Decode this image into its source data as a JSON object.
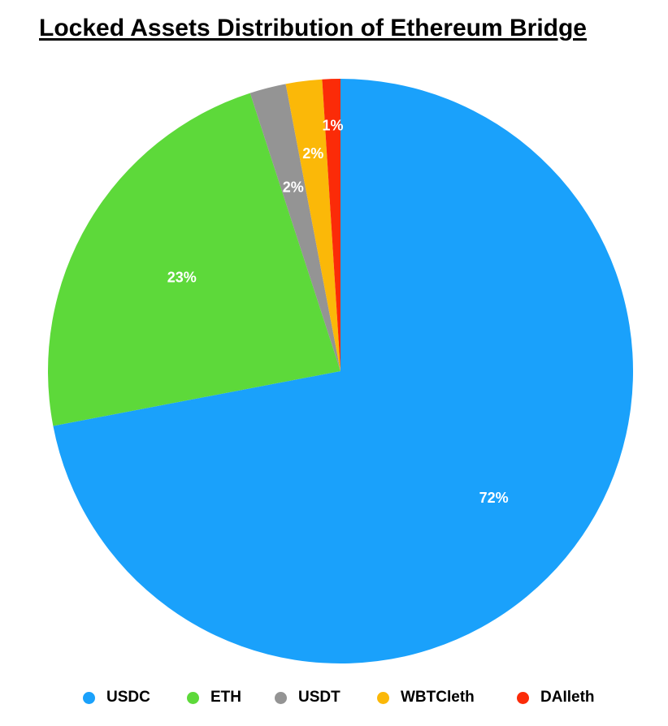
{
  "chart_data": {
    "type": "pie",
    "title": "Locked Assets Distribution of Ethereum Bridge",
    "categories": [
      "USDC",
      "ETH",
      "USDT",
      "WBTCleth",
      "DAIleth"
    ],
    "values": [
      72,
      23,
      2,
      2,
      1
    ],
    "value_labels": [
      "72%",
      "23%",
      "2%",
      "2%",
      "1%"
    ],
    "colors": [
      "#1aa1fb",
      "#5dd93a",
      "#949494",
      "#fbb808",
      "#fb2b08"
    ],
    "start_angle": "12 o'clock",
    "direction": "clockwise",
    "legend_position": "bottom"
  }
}
